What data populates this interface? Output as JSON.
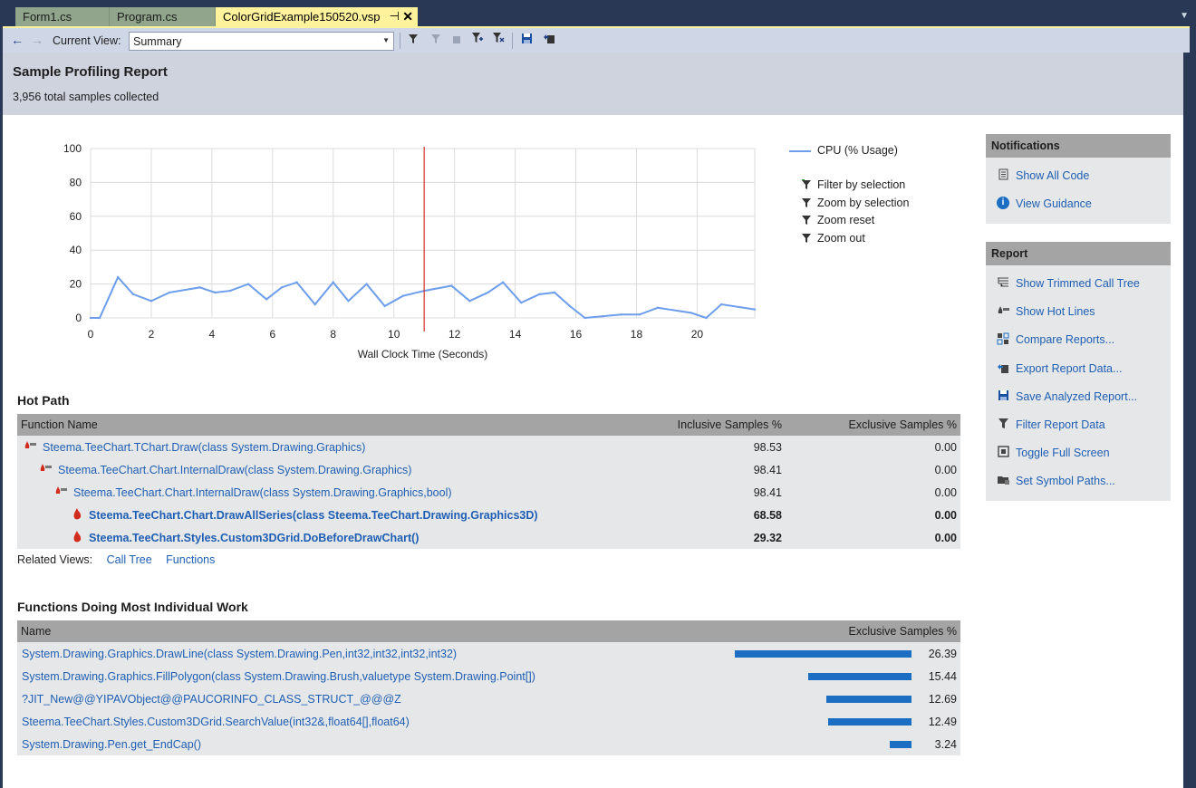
{
  "tabs": [
    {
      "label": "Form1.cs"
    },
    {
      "label": "Program.cs"
    },
    {
      "label": "ColorGridExample150520.vsp",
      "pin": "⊣",
      "close": "✕"
    }
  ],
  "toolbar": {
    "current_view_label": "Current View:",
    "current_view_value": "Summary"
  },
  "report": {
    "title": "Sample Profiling Report",
    "subtitle": "3,956 total samples collected"
  },
  "chart_data": {
    "type": "line",
    "xlabel": "Wall Clock Time (Seconds)",
    "ylabel": "",
    "xlim": [
      0,
      21.9
    ],
    "ylim": [
      0,
      100
    ],
    "xticks": [
      0,
      2,
      4,
      6,
      8,
      10,
      12,
      14,
      16,
      18,
      20
    ],
    "yticks": [
      0,
      20,
      40,
      60,
      80,
      100
    ],
    "grid": true,
    "legend": "right",
    "marker_x": 11,
    "marker_color": "#d0312d",
    "series": [
      {
        "name": "CPU (% Usage)",
        "color": "#6d9eeb",
        "x": [
          0,
          0.3,
          0.9,
          1.4,
          2.0,
          2.6,
          3.6,
          4.1,
          4.6,
          5.2,
          5.8,
          6.3,
          6.8,
          7.4,
          8.0,
          8.5,
          9.1,
          9.7,
          10.3,
          11.0,
          11.9,
          12.5,
          13.1,
          13.6,
          14.2,
          14.8,
          15.3,
          15.8,
          16.3,
          16.9,
          17.5,
          18.1,
          18.7,
          19.8,
          20.3,
          20.8,
          21.9
        ],
        "y": [
          0,
          0,
          24,
          14,
          10,
          15,
          18,
          15,
          16,
          20,
          11,
          18,
          21,
          8,
          21,
          10,
          20,
          7,
          13,
          16,
          19,
          10,
          15,
          21,
          9,
          14,
          15,
          7,
          0,
          1,
          2,
          2,
          6,
          3,
          0,
          8,
          5
        ]
      }
    ]
  },
  "legend_actions": [
    {
      "label": "Filter by selection"
    },
    {
      "label": "Zoom by selection"
    },
    {
      "label": "Zoom reset"
    },
    {
      "label": "Zoom out"
    }
  ],
  "hot_path": {
    "title": "Hot Path",
    "headers": {
      "name": "Function Name",
      "inclusive": "Inclusive Samples %",
      "exclusive": "Exclusive Samples %"
    },
    "rows": [
      {
        "name": "Steema.TeeChart.TChart.Draw(class System.Drawing.Graphics)",
        "inclusive": "98.53",
        "exclusive": "0.00"
      },
      {
        "name": "Steema.TeeChart.Chart.InternalDraw(class System.Drawing.Graphics)",
        "inclusive": "98.41",
        "exclusive": "0.00"
      },
      {
        "name": "Steema.TeeChart.Chart.InternalDraw(class System.Drawing.Graphics,bool)",
        "inclusive": "98.41",
        "exclusive": "0.00"
      },
      {
        "name": "Steema.TeeChart.Chart.DrawAllSeries(class Steema.TeeChart.Drawing.Graphics3D)",
        "inclusive": "68.58",
        "exclusive": "0.00"
      },
      {
        "name": "Steema.TeeChart.Styles.Custom3DGrid.DoBeforeDrawChart()",
        "inclusive": "29.32",
        "exclusive": "0.00"
      }
    ]
  },
  "related_views": {
    "label": "Related Views:",
    "links": [
      "Call Tree",
      "Functions"
    ]
  },
  "individual_work": {
    "title": "Functions Doing Most Individual Work",
    "headers": {
      "name": "Name",
      "exclusive": "Exclusive Samples %"
    },
    "rows": [
      {
        "name": "System.Drawing.Graphics.DrawLine(class System.Drawing.Pen,int32,int32,int32,int32)",
        "exclusive": "26.39",
        "value": 26.39
      },
      {
        "name": "System.Drawing.Graphics.FillPolygon(class System.Drawing.Brush,valuetype System.Drawing.Point[])",
        "exclusive": "15.44",
        "value": 15.44
      },
      {
        "name": "?JIT_New@@YIPAVObject@@PAUCORINFO_CLASS_STRUCT_@@@Z",
        "exclusive": "12.69",
        "value": 12.69
      },
      {
        "name": "Steema.TeeChart.Styles.Custom3DGrid.SearchValue(int32&,float64[],float64)",
        "exclusive": "12.49",
        "value": 12.49
      },
      {
        "name": "System.Drawing.Pen.get_EndCap()",
        "exclusive": "3.24",
        "value": 3.24
      }
    ]
  },
  "notifications": {
    "title": "Notifications",
    "items": [
      {
        "label": "Show All Code"
      },
      {
        "label": "View Guidance"
      }
    ]
  },
  "report_panel": {
    "title": "Report",
    "items": [
      {
        "label": "Show Trimmed Call Tree"
      },
      {
        "label": "Show Hot Lines"
      },
      {
        "label": "Compare Reports..."
      },
      {
        "label": "Export Report Data..."
      },
      {
        "label": "Save Analyzed Report..."
      },
      {
        "label": "Filter Report Data"
      },
      {
        "label": "Toggle Full Screen"
      },
      {
        "label": "Set Symbol Paths..."
      }
    ]
  }
}
